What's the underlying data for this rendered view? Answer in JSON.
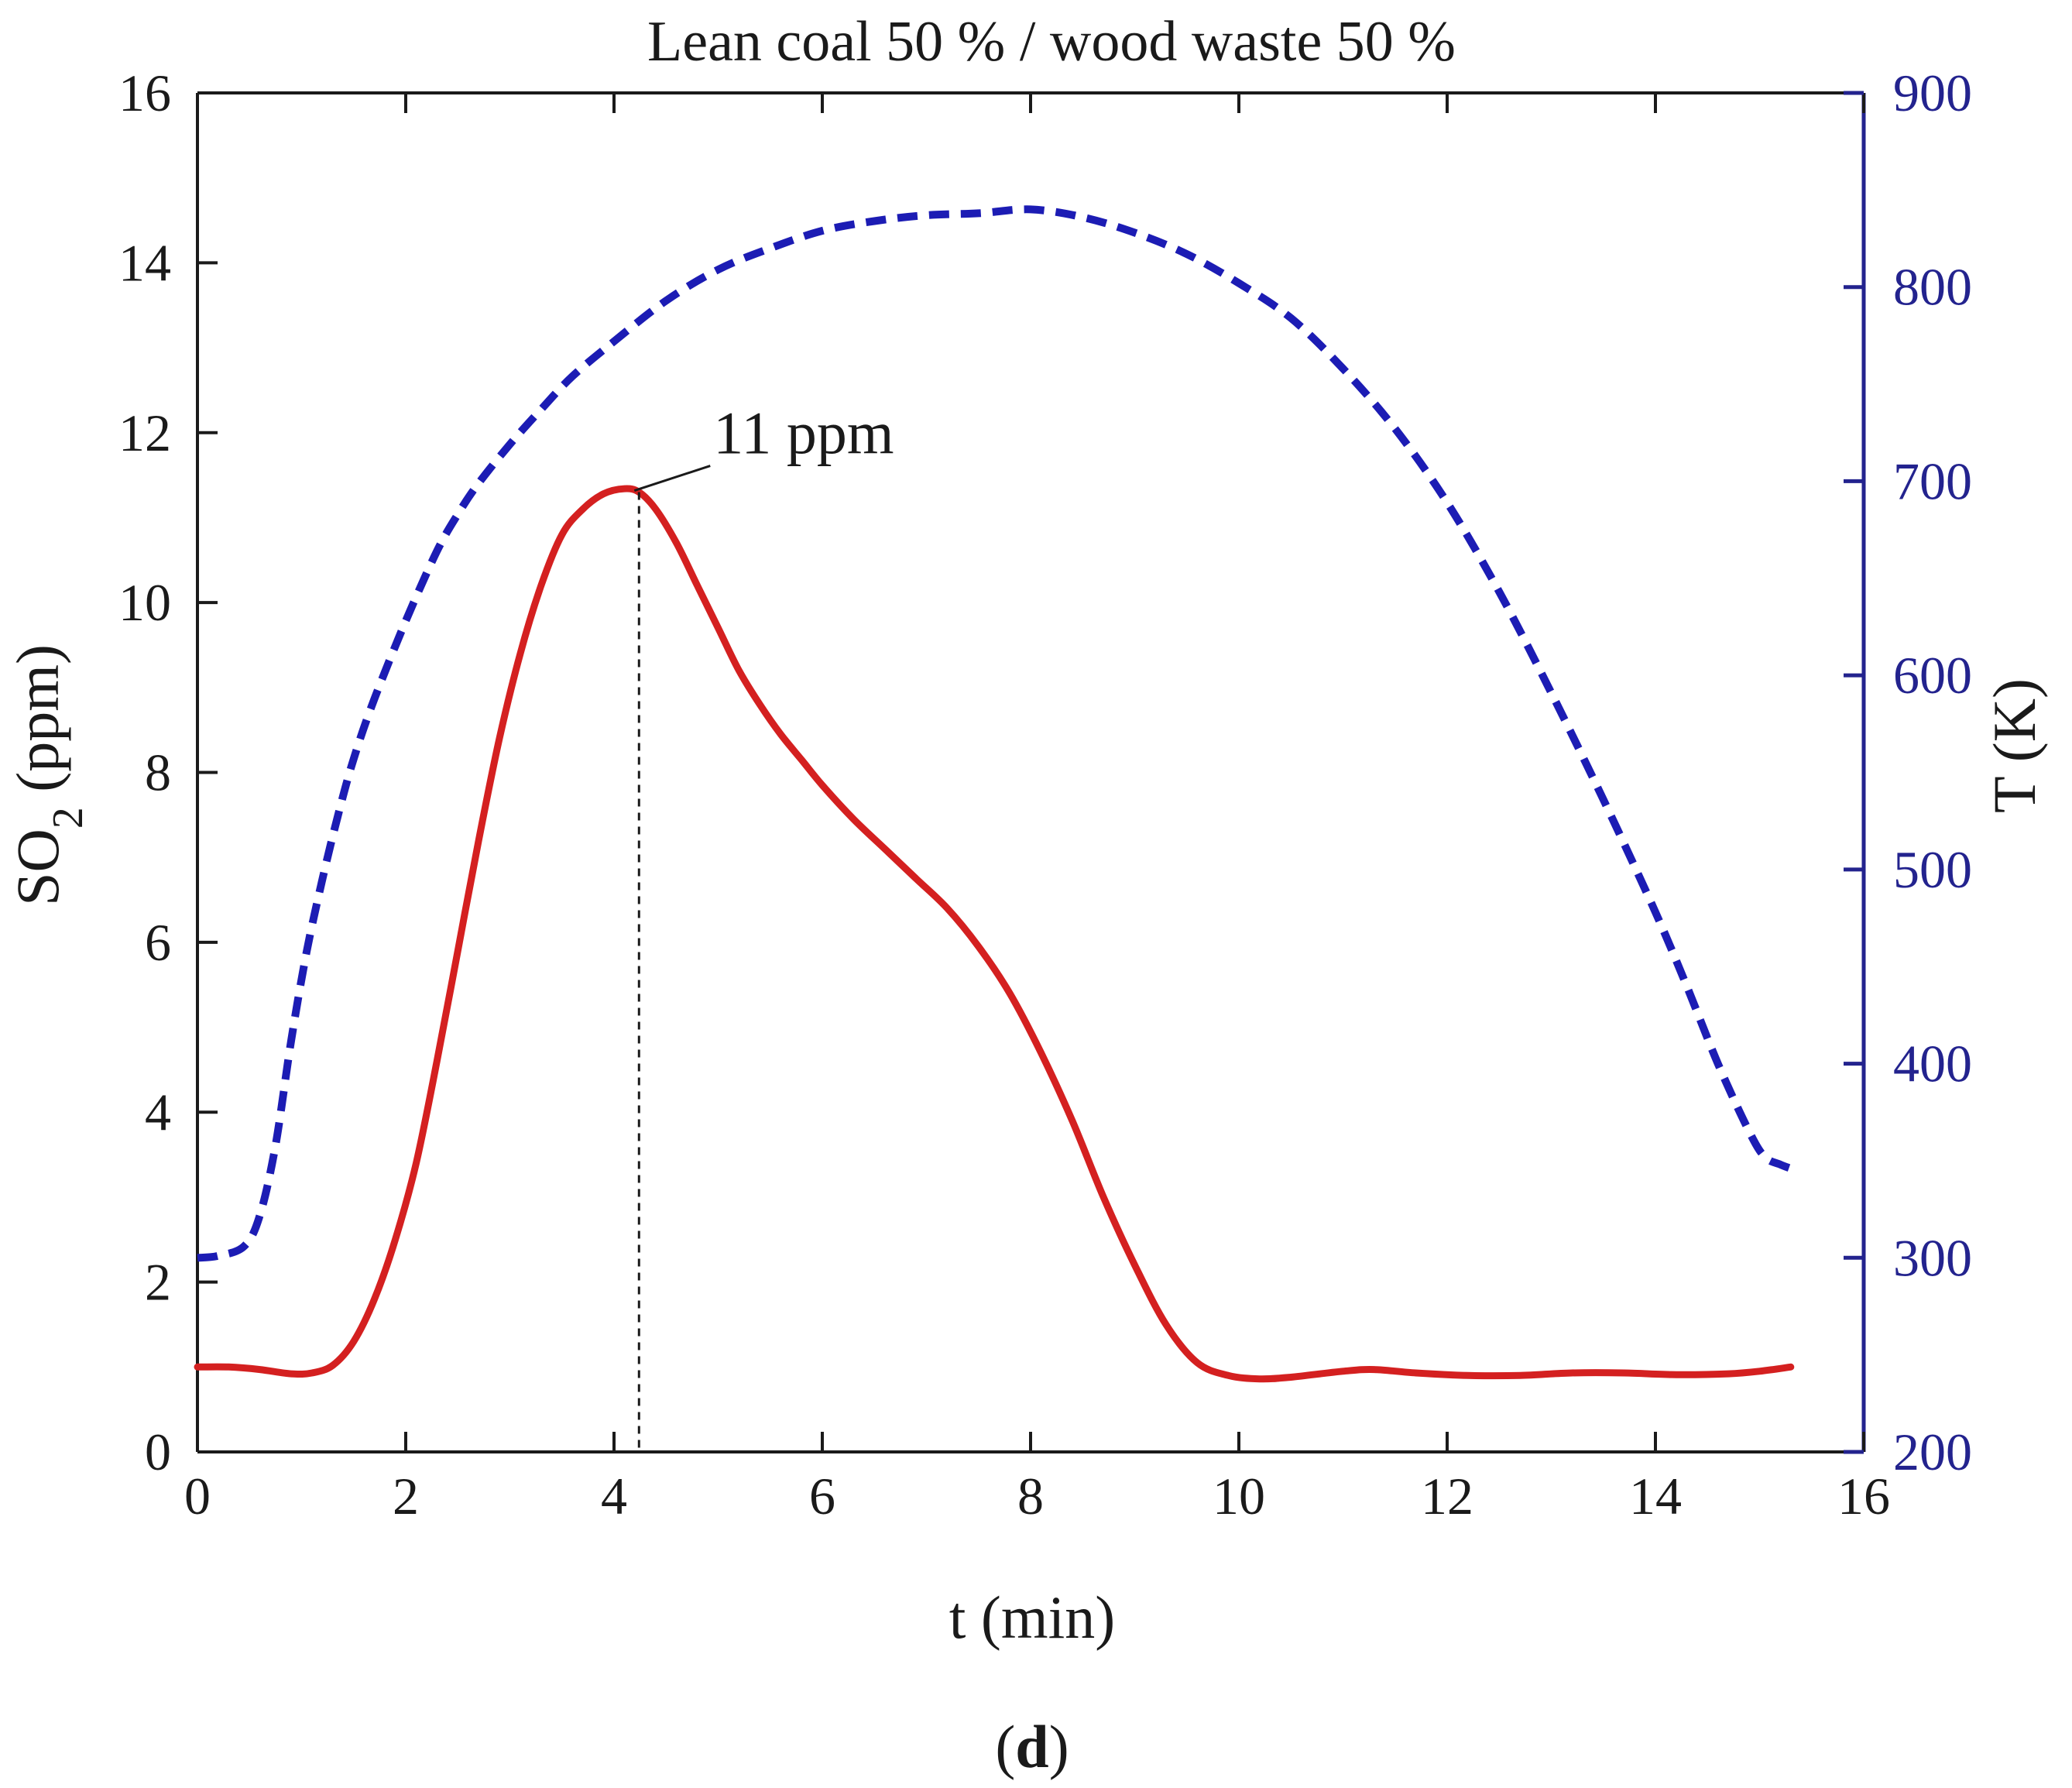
{
  "chart_data": {
    "type": "line",
    "title": "Lean coal 50 % / wood waste 50 %",
    "xlabel": "t (min)",
    "ylabel": {
      "base": "SO",
      "sub": "2",
      "rest": " (ppm)"
    },
    "y2label": "T (K)",
    "panel_label": {
      "open": "(",
      "letter": "d",
      "close": ")"
    },
    "xlim": [
      0,
      16
    ],
    "ylim": [
      0,
      16
    ],
    "y2lim": [
      200,
      900
    ],
    "xticks": [
      0,
      2,
      4,
      6,
      8,
      10,
      12,
      14,
      16
    ],
    "yticks": [
      0,
      2,
      4,
      6,
      8,
      10,
      12,
      14,
      16
    ],
    "y2ticks": [
      200,
      300,
      400,
      500,
      600,
      700,
      800,
      900
    ],
    "colors": {
      "so2": "#d42020",
      "temp": "#1c1cb4",
      "right_axis": "#23238e",
      "axis": "#1a1a1a"
    },
    "annotation": {
      "text": "11 ppm",
      "x": 4.24,
      "y": 11.3
    },
    "series": [
      {
        "name": "SO2",
        "axis": "left",
        "style": "solid",
        "x": [
          0,
          0.3,
          0.6,
          0.9,
          1.1,
          1.3,
          1.5,
          1.7,
          1.9,
          2.1,
          2.3,
          2.5,
          2.7,
          2.9,
          3.1,
          3.3,
          3.5,
          3.7,
          3.9,
          4.1,
          4.24,
          4.4,
          4.6,
          4.8,
          5.0,
          5.2,
          5.4,
          5.6,
          5.8,
          6.0,
          6.3,
          6.6,
          6.9,
          7.2,
          7.5,
          7.8,
          8.1,
          8.4,
          8.7,
          9.0,
          9.3,
          9.6,
          9.9,
          10.2,
          10.5,
          11.0,
          11.3,
          11.7,
          12.2,
          12.7,
          13.2,
          13.7,
          14.2,
          14.7,
          15.0,
          15.3
        ],
        "y": [
          1.0,
          1.0,
          0.97,
          0.92,
          0.93,
          1.02,
          1.3,
          1.8,
          2.5,
          3.4,
          4.6,
          5.9,
          7.2,
          8.4,
          9.4,
          10.2,
          10.8,
          11.1,
          11.28,
          11.34,
          11.3,
          11.1,
          10.7,
          10.2,
          9.7,
          9.2,
          8.8,
          8.45,
          8.15,
          7.85,
          7.45,
          7.1,
          6.75,
          6.4,
          5.95,
          5.4,
          4.7,
          3.9,
          3.0,
          2.2,
          1.5,
          1.05,
          0.9,
          0.86,
          0.88,
          0.95,
          0.97,
          0.93,
          0.9,
          0.9,
          0.93,
          0.93,
          0.91,
          0.92,
          0.95,
          1.0
        ]
      },
      {
        "name": "T",
        "axis": "right",
        "style": "dashed",
        "x": [
          0,
          0.2,
          0.45,
          0.6,
          0.75,
          0.9,
          1.05,
          1.2,
          1.35,
          1.5,
          1.7,
          2.0,
          2.3,
          2.5,
          2.7,
          3.0,
          3.3,
          3.6,
          4.0,
          4.5,
          5.0,
          5.5,
          6.0,
          6.5,
          7.0,
          7.5,
          8.0,
          8.5,
          9.0,
          9.5,
          10.0,
          10.5,
          11.0,
          11.5,
          12.0,
          12.5,
          13.0,
          13.5,
          14.0,
          14.3,
          14.6,
          14.9,
          15.05,
          15.2,
          15.3
        ],
        "y": [
          300,
          301,
          306,
          322,
          358,
          412,
          458,
          495,
          528,
          557,
          588,
          628,
          664,
          683,
          699,
          719,
          737,
          754,
          772,
          793,
          809,
          820,
          829,
          834,
          837,
          838,
          840,
          836,
          828,
          817,
          802,
          784,
          758,
          727,
          689,
          643,
          591,
          536,
          478,
          440,
          400,
          365,
          352,
          348,
          346
        ]
      }
    ]
  }
}
